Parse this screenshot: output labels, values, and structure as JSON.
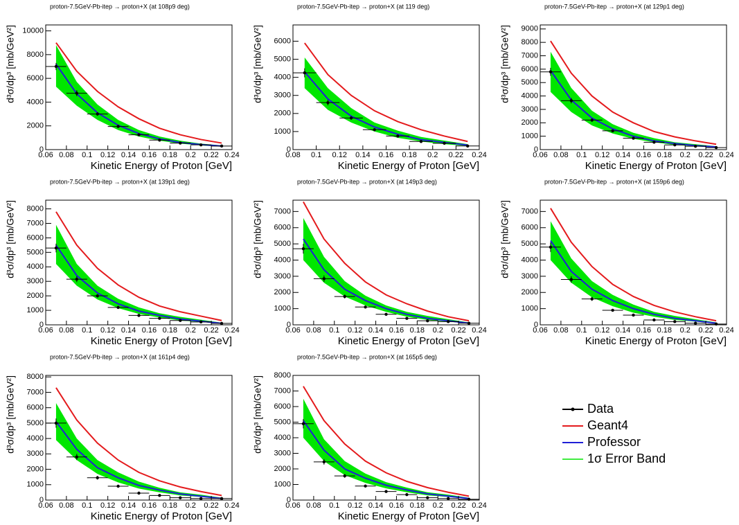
{
  "legend": [
    {
      "name": "Data",
      "color": "#000000"
    },
    {
      "name": "Geant4",
      "color": "#e41a1c"
    },
    {
      "name": "Professor",
      "color": "#1f1fd6"
    },
    {
      "name": "1σ Error Band",
      "color": "#00e600"
    }
  ],
  "chart_data": [
    {
      "type": "line",
      "title": "proton-7.5GeV-Pb-itep → proton+X (at 108p9 deg)",
      "xlabel": "Kinetic Energy of Proton [GeV]",
      "ylabel": "d³σ/dp³ [mb/GeV²]",
      "xlim": [
        0.06,
        0.24
      ],
      "xticks": [
        0.06,
        0.08,
        0.1,
        0.12,
        0.14,
        0.16,
        0.18,
        0.2,
        0.22,
        0.24
      ],
      "ylim": [
        0,
        10500
      ],
      "yticks": [
        0,
        2000,
        4000,
        6000,
        8000,
        10000
      ],
      "x": [
        0.07,
        0.09,
        0.11,
        0.13,
        0.15,
        0.17,
        0.19,
        0.21,
        0.23
      ],
      "data": {
        "values": [
          7000,
          4750,
          3000,
          1950,
          1250,
          800,
          550,
          400,
          300
        ],
        "xerr": [
          0.01,
          0.01,
          0.01,
          0.01,
          0.01,
          0.01,
          0.01,
          0.01,
          0.01
        ],
        "yerr": [
          300,
          250,
          150,
          100,
          80,
          60,
          40,
          30,
          30
        ]
      },
      "geant4": [
        9000,
        6600,
        4900,
        3600,
        2600,
        1800,
        1250,
        850,
        550
      ],
      "professor": [
        7200,
        4700,
        3100,
        2050,
        1350,
        900,
        600,
        420,
        300
      ],
      "band": {
        "low": [
          5300,
          3700,
          2500,
          1650,
          1100,
          750,
          500,
          350,
          250
        ],
        "high": [
          8800,
          5700,
          3800,
          2500,
          1650,
          1100,
          750,
          500,
          360
        ]
      }
    },
    {
      "type": "line",
      "title": "proton-7.5GeV-Pb-itep → proton+X (at 119 deg)",
      "xlabel": "Kinetic Energy of Proton [GeV]",
      "ylabel": "d³σ/dp³ [mb/GeV²]",
      "xlim": [
        0.08,
        0.24
      ],
      "xticks": [
        0.08,
        0.1,
        0.12,
        0.14,
        0.16,
        0.18,
        0.2,
        0.22,
        0.24
      ],
      "ylim": [
        0,
        6900
      ],
      "yticks": [
        0,
        1000,
        2000,
        3000,
        4000,
        5000,
        6000
      ],
      "x": [
        0.09,
        0.11,
        0.13,
        0.15,
        0.17,
        0.19,
        0.21,
        0.23
      ],
      "data": {
        "values": [
          4250,
          2600,
          1750,
          1100,
          750,
          450,
          350,
          200
        ],
        "xerr": [
          0.01,
          0.01,
          0.01,
          0.01,
          0.01,
          0.01,
          0.01,
          0.01
        ],
        "yerr": [
          250,
          150,
          100,
          80,
          60,
          40,
          30,
          30
        ]
      },
      "geant4": [
        5900,
        4150,
        3000,
        2150,
        1550,
        1100,
        750,
        450
      ],
      "professor": [
        4300,
        2800,
        1850,
        1250,
        850,
        550,
        400,
        250
      ],
      "band": {
        "low": [
          3400,
          2200,
          1500,
          1000,
          650,
          450,
          300,
          200
        ],
        "high": [
          5100,
          3400,
          2300,
          1500,
          1050,
          700,
          500,
          300
        ]
      }
    },
    {
      "type": "line",
      "title": "proton-7.5GeV-Pb-itep → proton+X (at 129p1 deg)",
      "xlabel": "Kinetic Energy of Proton [GeV]",
      "ylabel": "d³σ/dp³ [mb/GeV²]",
      "xlim": [
        0.06,
        0.24
      ],
      "xticks": [
        0.06,
        0.08,
        0.1,
        0.12,
        0.14,
        0.16,
        0.18,
        0.2,
        0.22,
        0.24
      ],
      "ylim": [
        0,
        9300
      ],
      "yticks": [
        0,
        1000,
        2000,
        3000,
        4000,
        5000,
        6000,
        7000,
        8000,
        9000
      ],
      "x": [
        0.07,
        0.09,
        0.11,
        0.13,
        0.15,
        0.17,
        0.19,
        0.21,
        0.23
      ],
      "data": {
        "values": [
          5800,
          3650,
          2200,
          1400,
          850,
          550,
          350,
          250,
          150
        ],
        "xerr": [
          0.01,
          0.01,
          0.01,
          0.01,
          0.01,
          0.01,
          0.01,
          0.01,
          0.01
        ],
        "yerr": [
          300,
          200,
          120,
          80,
          60,
          40,
          30,
          20,
          20
        ]
      },
      "geant4": [
        8100,
        5700,
        4000,
        2800,
        2000,
        1350,
        950,
        650,
        400
      ],
      "professor": [
        5900,
        3700,
        2350,
        1550,
        1000,
        650,
        450,
        300,
        200
      ],
      "band": {
        "low": [
          4300,
          2800,
          1800,
          1200,
          800,
          550,
          350,
          250,
          150
        ],
        "high": [
          7300,
          4600,
          2900,
          1900,
          1250,
          850,
          550,
          400,
          250
        ]
      }
    },
    {
      "type": "line",
      "title": "proton-7.5GeV-Pb-itep → proton+X (at 139p1 deg)",
      "xlabel": "Kinetic Energy of Proton [GeV]",
      "ylabel": "d³σ/dp³ [mb/GeV²]",
      "xlim": [
        0.06,
        0.24
      ],
      "xticks": [
        0.06,
        0.08,
        0.1,
        0.12,
        0.14,
        0.16,
        0.18,
        0.2,
        0.22,
        0.24
      ],
      "ylim": [
        0,
        8600
      ],
      "yticks": [
        0,
        1000,
        2000,
        3000,
        4000,
        5000,
        6000,
        7000,
        8000
      ],
      "x": [
        0.07,
        0.09,
        0.11,
        0.13,
        0.15,
        0.17,
        0.19,
        0.21,
        0.23
      ],
      "data": {
        "values": [
          5300,
          3150,
          2000,
          1200,
          650,
          450,
          300,
          200,
          100
        ],
        "xerr": [
          0.01,
          0.01,
          0.01,
          0.01,
          0.01,
          0.01,
          0.01,
          0.01,
          0.01
        ],
        "yerr": [
          300,
          200,
          120,
          80,
          50,
          40,
          30,
          20,
          20
        ]
      },
      "geant4": [
        7800,
        5500,
        3900,
        2750,
        1900,
        1300,
        900,
        600,
        300
      ],
      "professor": [
        5500,
        3400,
        2200,
        1450,
        950,
        650,
        400,
        250,
        100
      ],
      "band": {
        "low": [
          4200,
          2700,
          1750,
          1150,
          750,
          500,
          300,
          200,
          80
        ],
        "high": [
          6900,
          4200,
          2700,
          1800,
          1200,
          800,
          550,
          350,
          150
        ]
      }
    },
    {
      "type": "line",
      "title": "proton-7.5GeV-Pb-itep → proton+X (at 149p3 deg)",
      "xlabel": "Kinetic Energy of Proton [GeV]",
      "ylabel": "d³σ/dp³ [mb/GeV²]",
      "xlim": [
        0.06,
        0.24
      ],
      "xticks": [
        0.06,
        0.08,
        0.1,
        0.12,
        0.14,
        0.16,
        0.18,
        0.2,
        0.22,
        0.24
      ],
      "ylim": [
        0,
        7700
      ],
      "yticks": [
        0,
        1000,
        2000,
        3000,
        4000,
        5000,
        6000,
        7000
      ],
      "x": [
        0.07,
        0.09,
        0.11,
        0.13,
        0.15,
        0.17,
        0.19,
        0.21,
        0.23
      ],
      "data": {
        "values": [
          4700,
          2850,
          1750,
          1100,
          650,
          400,
          250,
          200,
          100
        ],
        "xerr": [
          0.01,
          0.01,
          0.01,
          0.01,
          0.01,
          0.01,
          0.01,
          0.01,
          0.01
        ],
        "yerr": [
          300,
          200,
          120,
          80,
          50,
          40,
          30,
          20,
          20
        ]
      },
      "geant4": [
        7600,
        5300,
        3800,
        2650,
        1850,
        1300,
        850,
        500,
        250
      ],
      "professor": [
        5300,
        3400,
        2200,
        1500,
        1000,
        650,
        400,
        250,
        100
      ],
      "band": {
        "low": [
          4000,
          2600,
          1750,
          1200,
          800,
          500,
          300,
          200,
          80
        ],
        "high": [
          6600,
          4200,
          2700,
          1800,
          1200,
          800,
          550,
          350,
          150
        ]
      }
    },
    {
      "type": "line",
      "title": "proton-7.5GeV-Pb-itep → proton+X (at 159p6 deg)",
      "xlabel": "Kinetic Energy of Proton [GeV]",
      "ylabel": "d³σ/dp³ [mb/GeV²]",
      "xlim": [
        0.06,
        0.24
      ],
      "xticks": [
        0.06,
        0.08,
        0.1,
        0.12,
        0.14,
        0.16,
        0.18,
        0.2,
        0.22,
        0.24
      ],
      "ylim": [
        0,
        7700
      ],
      "yticks": [
        0,
        1000,
        2000,
        3000,
        4000,
        5000,
        6000,
        7000
      ],
      "x": [
        0.07,
        0.09,
        0.11,
        0.13,
        0.15,
        0.17,
        0.19,
        0.21,
        0.23
      ],
      "data": {
        "values": [
          4800,
          2800,
          1600,
          900,
          600,
          300,
          200,
          100,
          50
        ],
        "xerr": [
          0.01,
          0.01,
          0.01,
          0.01,
          0.01,
          0.01,
          0.01,
          0.01,
          0.01
        ],
        "yerr": [
          300,
          200,
          120,
          70,
          50,
          30,
          20,
          20,
          10
        ]
      },
      "geant4": [
        7200,
        5100,
        3600,
        2500,
        1750,
        1200,
        800,
        500,
        250
      ],
      "professor": [
        5200,
        3300,
        2200,
        1500,
        1000,
        650,
        400,
        250,
        100
      ],
      "band": {
        "low": [
          4000,
          2600,
          1700,
          1150,
          750,
          500,
          300,
          200,
          80
        ],
        "high": [
          6400,
          4100,
          2700,
          1850,
          1250,
          800,
          550,
          350,
          150
        ]
      }
    },
    {
      "type": "line",
      "title": "proton-7.5GeV-Pb-itep → proton+X (at 161p4 deg)",
      "xlabel": "Kinetic Energy of Proton [GeV]",
      "ylabel": "d³σ/dp³ [mb/GeV²]",
      "xlim": [
        0.06,
        0.24
      ],
      "xticks": [
        0.06,
        0.08,
        0.1,
        0.12,
        0.14,
        0.16,
        0.18,
        0.2,
        0.22,
        0.24
      ],
      "ylim": [
        0,
        8100
      ],
      "yticks": [
        0,
        1000,
        2000,
        3000,
        4000,
        5000,
        6000,
        7000,
        8000
      ],
      "x": [
        0.07,
        0.09,
        0.11,
        0.13,
        0.15,
        0.17,
        0.19,
        0.21,
        0.23
      ],
      "data": {
        "values": [
          5000,
          2800,
          1450,
          900,
          450,
          300,
          150,
          100,
          100
        ],
        "xerr": [
          0.01,
          0.01,
          0.01,
          0.01,
          0.01,
          0.01,
          0.01,
          0.01,
          0.01
        ],
        "yerr": [
          300,
          200,
          120,
          70,
          40,
          30,
          20,
          20,
          20
        ]
      },
      "geant4": [
        7300,
        5200,
        3700,
        2600,
        1800,
        1250,
        850,
        550,
        300
      ],
      "professor": [
        5100,
        3300,
        2100,
        1450,
        950,
        650,
        400,
        250,
        100
      ],
      "band": {
        "low": [
          3900,
          2600,
          1700,
          1150,
          750,
          500,
          300,
          200,
          80
        ],
        "high": [
          6300,
          4000,
          2600,
          1800,
          1200,
          800,
          500,
          350,
          150
        ]
      }
    },
    {
      "type": "line",
      "title": "proton-7.5GeV-Pb-itep → proton+X (at 165p5 deg)",
      "xlabel": "Kinetic Energy of Proton [GeV]",
      "ylabel": "d³σ/dp³ [mb/GeV²]",
      "xlim": [
        0.06,
        0.24
      ],
      "xticks": [
        0.06,
        0.08,
        0.1,
        0.12,
        0.14,
        0.16,
        0.18,
        0.2,
        0.22,
        0.24
      ],
      "ylim": [
        0,
        8000
      ],
      "yticks": [
        0,
        1000,
        2000,
        3000,
        4000,
        5000,
        6000,
        7000,
        8000
      ],
      "x": [
        0.07,
        0.09,
        0.11,
        0.13,
        0.15,
        0.17,
        0.19,
        0.21,
        0.23
      ],
      "data": {
        "values": [
          4900,
          2450,
          1550,
          900,
          550,
          350,
          150,
          100,
          50
        ],
        "xerr": [
          0.01,
          0.01,
          0.01,
          0.01,
          0.01,
          0.01,
          0.01,
          0.01,
          0.01
        ],
        "yerr": [
          300,
          180,
          120,
          70,
          40,
          30,
          20,
          20,
          10
        ]
      },
      "geant4": [
        7300,
        5100,
        3600,
        2500,
        1750,
        1200,
        800,
        500,
        250
      ],
      "professor": [
        5100,
        3200,
        2000,
        1400,
        950,
        650,
        400,
        250,
        100
      ],
      "band": {
        "low": [
          4000,
          2500,
          1600,
          1100,
          750,
          500,
          300,
          200,
          80
        ],
        "high": [
          6500,
          3900,
          2500,
          1700,
          1150,
          800,
          500,
          350,
          150
        ]
      }
    }
  ]
}
